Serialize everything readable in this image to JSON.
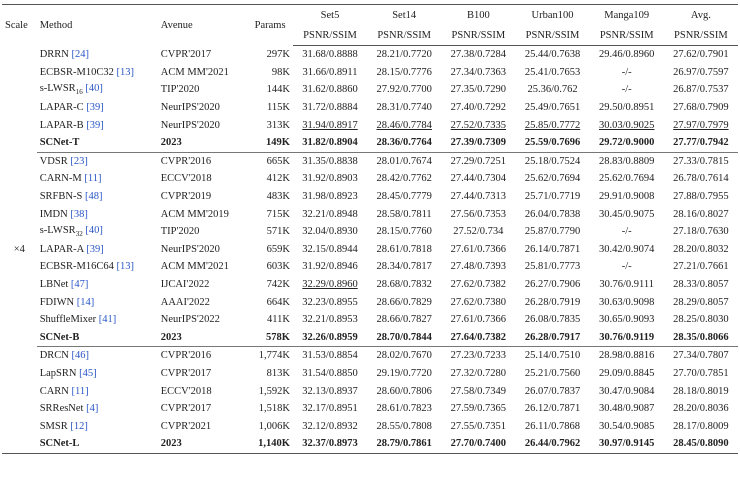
{
  "table": {
    "header": {
      "scale": "Scale",
      "method": "Method",
      "avenue": "Avenue",
      "params": "Params",
      "datasets": [
        {
          "name": "Set5",
          "metric": "PSNR/SSIM"
        },
        {
          "name": "Set14",
          "metric": "PSNR/SSIM"
        },
        {
          "name": "B100",
          "metric": "PSNR/SSIM"
        },
        {
          "name": "Urban100",
          "metric": "PSNR/SSIM"
        },
        {
          "name": "Manga109",
          "metric": "PSNR/SSIM"
        },
        {
          "name": "Avg.",
          "metric": "PSNR/SSIM"
        }
      ]
    },
    "scale": "×4",
    "groups": [
      [
        {
          "method": "DRRN",
          "ref": "[24]",
          "avenue": "CVPR'2017",
          "params": "297K",
          "scores": [
            "31.68/0.8888",
            "28.21/0.7720",
            "27.38/0.7284",
            "25.44/0.7638",
            "29.46/0.8960",
            "27.62/0.7901"
          ]
        },
        {
          "method": "ECBSR-M10C32",
          "ref": "[13]",
          "avenue": "ACM MM'2021",
          "params": "98K",
          "scores": [
            "31.66/0.8911",
            "28.15/0.7776",
            "27.34/0.7363",
            "25.41/0.7653",
            "-/-",
            "26.97/0.7597"
          ]
        },
        {
          "method": "s-LWSR",
          "sub": "16",
          "ref": "[40]",
          "avenue": "TIP'2020",
          "params": "144K",
          "scores": [
            "31.62/0.8860",
            "27.92/0.7700",
            "27.35/0.7290",
            "25.36/0.762",
            "-/-",
            "26.87/0.7537"
          ]
        },
        {
          "method": "LAPAR-C",
          "ref": "[39]",
          "avenue": "NeurIPS'2020",
          "params": "115K",
          "scores": [
            "31.72/0.8884",
            "28.31/0.7740",
            "27.40/0.7292",
            "25.49/0.7651",
            "29.50/0.8951",
            "27.68/0.7909"
          ]
        },
        {
          "method": "LAPAR-B",
          "ref": "[39]",
          "avenue": "NeurIPS'2020",
          "params": "313K",
          "scores": [
            "31.94/0.8917",
            "28.46/0.7784",
            "27.52/0.7335",
            "25.85/0.7772",
            "30.03/0.9025",
            "27.97/0.7979"
          ]
        },
        {
          "method": "SCNet-T",
          "avenue": "2023",
          "params": "149K",
          "scores": [
            "31.82/0.8904",
            "28.36/0.7764",
            "27.39/0.7309",
            "25.59/0.7696",
            "29.72/0.9000",
            "27.77/0.7942"
          ]
        }
      ],
      [
        {
          "method": "VDSR",
          "ref": "[23]",
          "avenue": "CVPR'2016",
          "params": "665K",
          "scores": [
            "31.35/0.8838",
            "28.01/0.7674",
            "27.29/0.7251",
            "25.18/0.7524",
            "28.83/0.8809",
            "27.33/0.7815"
          ]
        },
        {
          "method": "CARN-M",
          "ref": "[11]",
          "avenue": "ECCV'2018",
          "params": "412K",
          "scores": [
            "31.92/0.8903",
            "28.42/0.7762",
            "27.44/0.7304",
            "25.62/0.7694",
            "25.62/0.7694",
            "26.78/0.7614"
          ]
        },
        {
          "method": "SRFBN-S",
          "ref": "[48]",
          "avenue": "CVPR'2019",
          "params": "483K",
          "scores": [
            "31.98/0.8923",
            "28.45/0.7779",
            "27.44/0.7313",
            "25.71/0.7719",
            "29.91/0.9008",
            "27.88/0.7955"
          ]
        },
        {
          "method": "IMDN",
          "ref": "[38]",
          "avenue": "ACM MM'2019",
          "params": "715K",
          "scores": [
            "32.21/0.8948",
            "28.58/0.7811",
            "27.56/0.7353",
            "26.04/0.7838",
            "30.45/0.9075",
            "28.16/0.8027"
          ]
        },
        {
          "method": "s-LWSR",
          "sub": "32",
          "ref": "[40]",
          "avenue": "TIP'2020",
          "params": "571K",
          "scores": [
            "32.04/0.8930",
            "28.15/0.7760",
            "27.52/0.734",
            "25.87/0.7790",
            "-/-",
            "27.18/0.7630"
          ]
        },
        {
          "method": "LAPAR-A",
          "ref": "[39]",
          "avenue": "NeurIPS'2020",
          "params": "659K",
          "scores": [
            "32.15/0.8944",
            "28.61/0.7818",
            "27.61/0.7366",
            "26.14/0.7871",
            "30.42/0.9074",
            "28.20/0.8032"
          ]
        },
        {
          "method": "ECBSR-M16C64",
          "ref": "[13]",
          "avenue": "ACM MM'2021",
          "params": "603K",
          "scores": [
            "31.92/0.8946",
            "28.34/0.7817",
            "27.48/0.7393",
            "25.81/0.7773",
            "-/-",
            "27.21/0.7661"
          ]
        },
        {
          "method": "LBNet",
          "ref": "[47]",
          "avenue": "IJCAI'2022",
          "params": "742K",
          "scores": [
            "32.29/0.8960",
            "28.68/0.7832",
            "27.62/0.7382",
            "26.27/0.7906",
            "30.76/0.9111",
            "28.33/0.8057"
          ]
        },
        {
          "method": "FDIWN",
          "ref": "[14]",
          "avenue": "AAAI'2022",
          "params": "664K",
          "scores": [
            "32.23/0.8955",
            "28.66/0.7829",
            "27.62/0.7380",
            "26.28/0.7919",
            "30.63/0.9098",
            "28.29/0.8057"
          ]
        },
        {
          "method": "ShuffleMixer",
          "ref": "[41]",
          "avenue": "NeurIPS'2022",
          "params": "411K",
          "scores": [
            "32.21/0.8953",
            "28.66/0.7827",
            "27.61/0.7366",
            "26.08/0.7835",
            "30.65/0.9093",
            "28.25/0.8030"
          ]
        },
        {
          "method": "SCNet-B",
          "avenue": "2023",
          "params": "578K",
          "scores": [
            "32.26/0.8959",
            "28.70/0.7844",
            "27.64/0.7382",
            "26.28/0.7917",
            "30.76/0.9119",
            "28.35/0.8066"
          ]
        }
      ],
      [
        {
          "method": "DRCN",
          "ref": "[46]",
          "avenue": "CVPR'2016",
          "params": "1,774K",
          "scores": [
            "31.53/0.8854",
            "28.02/0.7670",
            "27.23/0.7233",
            "25.14/0.7510",
            "28.98/0.8816",
            "27.34/0.7807"
          ]
        },
        {
          "method": "LapSRN",
          "ref": "[45]",
          "avenue": "CVPR'2017",
          "params": "813K",
          "scores": [
            "31.54/0.8850",
            "29.19/0.7720",
            "27.32/0.7280",
            "25.21/0.7560",
            "29.09/0.8845",
            "27.70/0.7851"
          ]
        },
        {
          "method": "CARN",
          "ref": "[11]",
          "avenue": "ECCV'2018",
          "params": "1,592K",
          "scores": [
            "32.13/0.8937",
            "28.60/0.7806",
            "27.58/0.7349",
            "26.07/0.7837",
            "30.47/0.9084",
            "28.18/0.8019"
          ]
        },
        {
          "method": "SRResNet",
          "ref": "[4]",
          "avenue": "CVPR'2017",
          "params": "1,518K",
          "scores": [
            "32.17/0.8951",
            "28.61/0.7823",
            "27.59/0.7365",
            "26.12/0.7871",
            "30.48/0.9087",
            "28.20/0.8036"
          ]
        },
        {
          "method": "SMSR",
          "ref": "[12]",
          "avenue": "CVPR'2021",
          "params": "1,006K",
          "scores": [
            "32.12/0.8932",
            "28.55/0.7808",
            "27.55/0.7351",
            "26.11/0.7868",
            "30.54/0.9085",
            "28.17/0.8009"
          ]
        },
        {
          "method": "SCNet-L",
          "avenue": "2023",
          "params": "1,140K",
          "scores": [
            "32.37/0.8973",
            "28.79/0.7861",
            "27.70/0.7400",
            "26.44/0.7962",
            "30.97/0.9145",
            "28.45/0.8090"
          ]
        }
      ]
    ]
  }
}
